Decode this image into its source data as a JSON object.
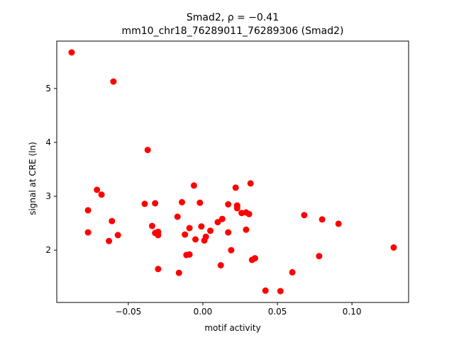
{
  "chart_data": {
    "type": "scatter",
    "title_line1": "Smad2, ρ = −0.41",
    "title_line2": "mm10_chr18_76289011_76289306 (Smad2)",
    "xlabel": "motif activity",
    "ylabel": "signal at CRE (ln)",
    "xlim": [
      -0.098,
      0.138
    ],
    "ylim": [
      1.03,
      5.88
    ],
    "xticks": [
      -0.05,
      0.0,
      0.05,
      0.1
    ],
    "xtick_labels": [
      "−0.05",
      "0.00",
      "0.05",
      "0.10"
    ],
    "yticks": [
      2,
      3,
      4,
      5
    ],
    "ytick_labels": [
      "2",
      "3",
      "4",
      "5"
    ],
    "grid": false,
    "marker_color": "#ff0000",
    "points": [
      {
        "x": -0.088,
        "y": 5.67
      },
      {
        "x": -0.06,
        "y": 5.13
      },
      {
        "x": -0.037,
        "y": 3.86
      },
      {
        "x": -0.071,
        "y": 3.12
      },
      {
        "x": -0.068,
        "y": 3.03
      },
      {
        "x": -0.077,
        "y": 2.74
      },
      {
        "x": -0.077,
        "y": 2.33
      },
      {
        "x": -0.061,
        "y": 2.54
      },
      {
        "x": -0.063,
        "y": 2.17
      },
      {
        "x": -0.057,
        "y": 2.28
      },
      {
        "x": -0.039,
        "y": 2.86
      },
      {
        "x": -0.032,
        "y": 2.87
      },
      {
        "x": -0.034,
        "y": 2.45
      },
      {
        "x": -0.032,
        "y": 2.32
      },
      {
        "x": -0.03,
        "y": 2.34
      },
      {
        "x": -0.03,
        "y": 2.28
      },
      {
        "x": -0.03,
        "y": 1.65
      },
      {
        "x": -0.017,
        "y": 2.62
      },
      {
        "x": -0.014,
        "y": 2.89
      },
      {
        "x": -0.006,
        "y": 3.2
      },
      {
        "x": -0.012,
        "y": 2.29
      },
      {
        "x": -0.009,
        "y": 2.41
      },
      {
        "x": -0.005,
        "y": 2.2
      },
      {
        "x": -0.011,
        "y": 1.91
      },
      {
        "x": -0.009,
        "y": 1.92
      },
      {
        "x": -0.016,
        "y": 1.58
      },
      {
        "x": -0.002,
        "y": 2.88
      },
      {
        "x": -0.001,
        "y": 2.44
      },
      {
        "x": 0.001,
        "y": 2.18
      },
      {
        "x": 0.002,
        "y": 2.25
      },
      {
        "x": 0.005,
        "y": 2.36
      },
      {
        "x": 0.01,
        "y": 2.52
      },
      {
        "x": 0.013,
        "y": 2.58
      },
      {
        "x": 0.012,
        "y": 1.72
      },
      {
        "x": 0.017,
        "y": 2.85
      },
      {
        "x": 0.017,
        "y": 2.33
      },
      {
        "x": 0.019,
        "y": 2.0
      },
      {
        "x": 0.022,
        "y": 3.16
      },
      {
        "x": 0.023,
        "y": 2.83
      },
      {
        "x": 0.023,
        "y": 2.78
      },
      {
        "x": 0.026,
        "y": 2.69
      },
      {
        "x": 0.029,
        "y": 2.7
      },
      {
        "x": 0.031,
        "y": 2.67
      },
      {
        "x": 0.029,
        "y": 2.38
      },
      {
        "x": 0.032,
        "y": 3.24
      },
      {
        "x": 0.033,
        "y": 1.82
      },
      {
        "x": 0.035,
        "y": 1.85
      },
      {
        "x": 0.042,
        "y": 1.25
      },
      {
        "x": 0.052,
        "y": 1.24
      },
      {
        "x": 0.06,
        "y": 1.59
      },
      {
        "x": 0.068,
        "y": 2.65
      },
      {
        "x": 0.078,
        "y": 1.89
      },
      {
        "x": 0.08,
        "y": 2.57
      },
      {
        "x": 0.091,
        "y": 2.49
      },
      {
        "x": 0.128,
        "y": 2.05
      }
    ]
  }
}
